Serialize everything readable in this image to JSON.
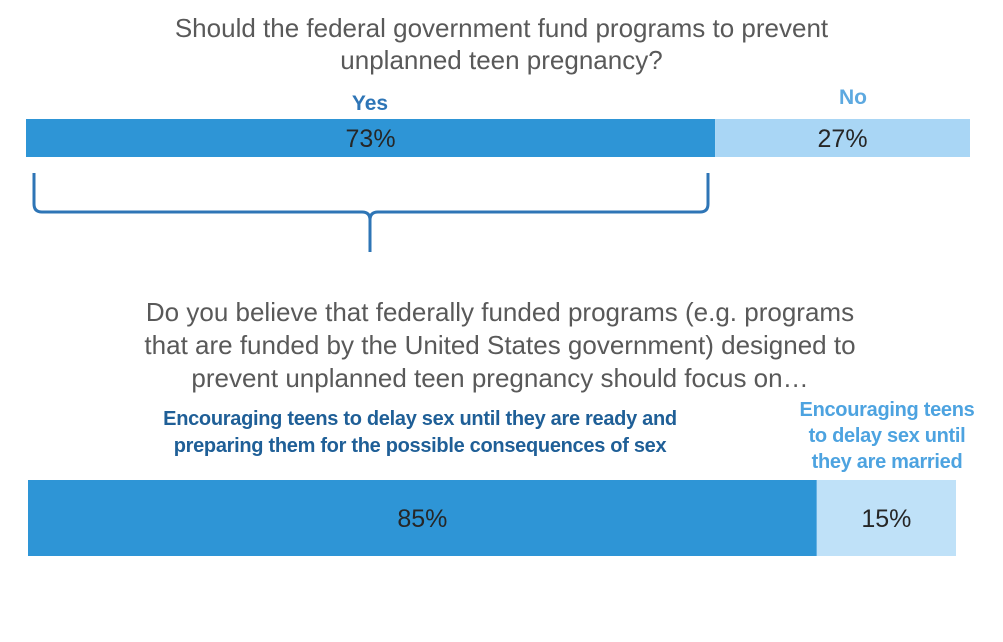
{
  "chart_data": [
    {
      "type": "bar",
      "title": "Should the federal government fund programs to prevent\nunplanned teen pregnancy?",
      "categories": [
        "Yes",
        "No"
      ],
      "values": [
        73,
        27
      ],
      "value_labels": [
        "73%",
        "27%"
      ],
      "colors": [
        "#2e95d6",
        "#a9d6f5"
      ]
    },
    {
      "type": "bar",
      "title": "Do you believe that federally funded programs (e.g. programs\nthat are funded by the United States government) designed to\nprevent unplanned teen pregnancy should focus on…",
      "categories": [
        "Encouraging teens to delay sex until they are ready and\npreparing them for the possible consequences of sex",
        "Encouraging teens\nto delay sex until\nthey are married"
      ],
      "values": [
        85,
        15
      ],
      "value_labels": [
        "85%",
        "15%"
      ],
      "colors": [
        "#2e95d6",
        "#bfe1f8"
      ]
    }
  ]
}
